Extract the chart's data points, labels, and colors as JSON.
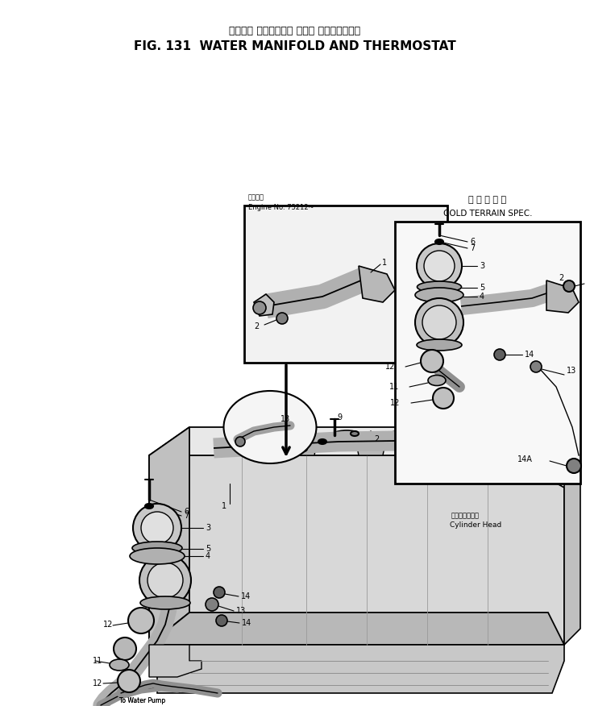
{
  "title_japanese": "ウィータ マニホールド および サーモスタート",
  "title_english": "FIG. 131  WATER MANIFOLD AND THERMOSTAT",
  "bg_color": "#ffffff",
  "fig_width": 7.32,
  "fig_height": 8.76,
  "dpi": 100,
  "inset_label_line1": "適用車番",
  "inset_label_line2": "Engine No. 75212~",
  "cold_terrain_japanese": "寒 冷 地 仕 様",
  "cold_terrain_english": "COLD TERRAIN SPEC.",
  "cylinder_head_japanese": "シリンダヘッド",
  "cylinder_head_english": "Cylinder Head",
  "water_pump_label": "To Water Pump"
}
